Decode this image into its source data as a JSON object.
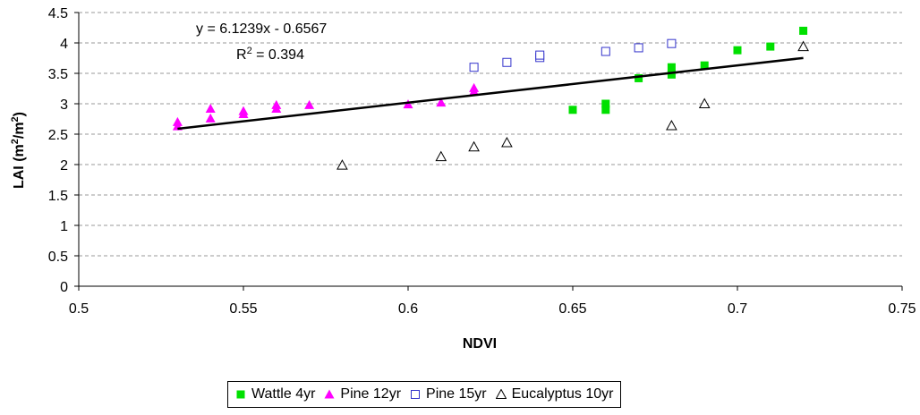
{
  "chart_data": {
    "type": "scatter",
    "xlabel": "NDVI",
    "ylabel_main": "LAI (m",
    "ylabel_sup1": "2",
    "ylabel_mid": "/m",
    "ylabel_sup2": "2",
    "ylabel_end": ")",
    "xlim": [
      0.5,
      0.75
    ],
    "ylim": [
      0,
      4.5
    ],
    "xticks": [
      "0.5",
      "0.55",
      "0.6",
      "0.65",
      "0.7",
      "0.75"
    ],
    "yticks": [
      "0",
      "0.5",
      "1",
      "1.5",
      "2",
      "2.5",
      "3",
      "3.5",
      "4",
      "4.5"
    ],
    "grid": "horizontal dashed",
    "legend_position": "bottom",
    "series": [
      {
        "name": "Wattle 4yr",
        "marker": "square-filled",
        "color": "#00e000",
        "points": [
          [
            0.65,
            2.9
          ],
          [
            0.66,
            2.9
          ],
          [
            0.66,
            3.0
          ],
          [
            0.67,
            3.42
          ],
          [
            0.68,
            3.48
          ],
          [
            0.68,
            3.6
          ],
          [
            0.69,
            3.63
          ],
          [
            0.7,
            3.88
          ],
          [
            0.71,
            3.94
          ],
          [
            0.72,
            4.2
          ]
        ]
      },
      {
        "name": "Pine 12yr",
        "marker": "triangle-filled",
        "color": "#ff00ff",
        "points": [
          [
            0.53,
            2.63
          ],
          [
            0.53,
            2.7
          ],
          [
            0.54,
            2.76
          ],
          [
            0.54,
            2.92
          ],
          [
            0.55,
            2.83
          ],
          [
            0.55,
            2.88
          ],
          [
            0.56,
            2.92
          ],
          [
            0.56,
            2.98
          ],
          [
            0.57,
            2.98
          ],
          [
            0.6,
            2.99
          ],
          [
            0.61,
            3.02
          ],
          [
            0.62,
            3.2
          ],
          [
            0.62,
            3.26
          ]
        ]
      },
      {
        "name": "Pine 15yr",
        "marker": "square-open",
        "color": "#3333cc",
        "points": [
          [
            0.62,
            3.6
          ],
          [
            0.63,
            3.68
          ],
          [
            0.64,
            3.76
          ],
          [
            0.64,
            3.8
          ],
          [
            0.66,
            3.86
          ],
          [
            0.67,
            3.92
          ],
          [
            0.68,
            3.99
          ]
        ]
      },
      {
        "name": "Eucalyptus 10yr",
        "marker": "triangle-open",
        "color": "#000000",
        "points": [
          [
            0.58,
            1.99
          ],
          [
            0.61,
            2.13
          ],
          [
            0.62,
            2.29
          ],
          [
            0.63,
            2.36
          ],
          [
            0.68,
            2.64
          ],
          [
            0.69,
            3.0
          ],
          [
            0.72,
            3.94
          ]
        ]
      }
    ],
    "trendline": {
      "slope": 6.1239,
      "intercept": -0.6567,
      "x_range": [
        0.53,
        0.72
      ],
      "color": "#000000"
    },
    "annotations": {
      "equation": "y = 6.1239x - 0.6567",
      "r2_prefix": "R",
      "r2_sup": "2",
      "r2_value": " = 0.394"
    }
  }
}
